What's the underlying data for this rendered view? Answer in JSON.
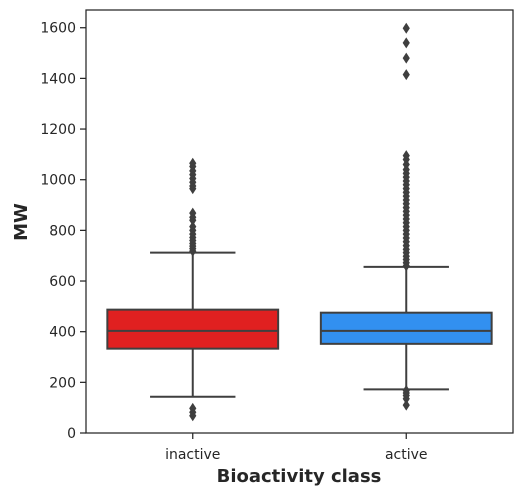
{
  "chart_data": {
    "type": "box",
    "title": "",
    "xlabel": "Bioactivity class",
    "ylabel": "MW",
    "ylim": [
      0,
      1670
    ],
    "yticks": [
      0,
      200,
      400,
      600,
      800,
      1000,
      1200,
      1400,
      1600
    ],
    "grid": false,
    "categories": [
      "inactive",
      "active"
    ],
    "colors": {
      "inactive": "#e02020",
      "active": "#3290f0",
      "line": "#3f3f3f",
      "frame": "#262626"
    },
    "boxes": [
      {
        "category": "inactive",
        "whisker_low": 143,
        "q1": 333,
        "median": 403,
        "q3": 487,
        "whisker_high": 712,
        "outliers": [
          68,
          82,
          97,
          718,
          728,
          738,
          748,
          760,
          772,
          785,
          800,
          815,
          840,
          852,
          868,
          965,
          975,
          990,
          1005,
          1020,
          1035,
          1052,
          1065
        ]
      },
      {
        "category": "active",
        "whisker_low": 172,
        "q1": 352,
        "median": 403,
        "q3": 475,
        "whisker_high": 656,
        "outliers": [
          110,
          135,
          148,
          158,
          168,
          660,
          672,
          685,
          698,
          712,
          725,
          740,
          755,
          770,
          785,
          800,
          815,
          830,
          845,
          860,
          875,
          890,
          905,
          920,
          935,
          950,
          965,
          980,
          995,
          1010,
          1025,
          1040,
          1060,
          1080,
          1095,
          1415,
          1480,
          1540,
          1598
        ]
      }
    ]
  }
}
